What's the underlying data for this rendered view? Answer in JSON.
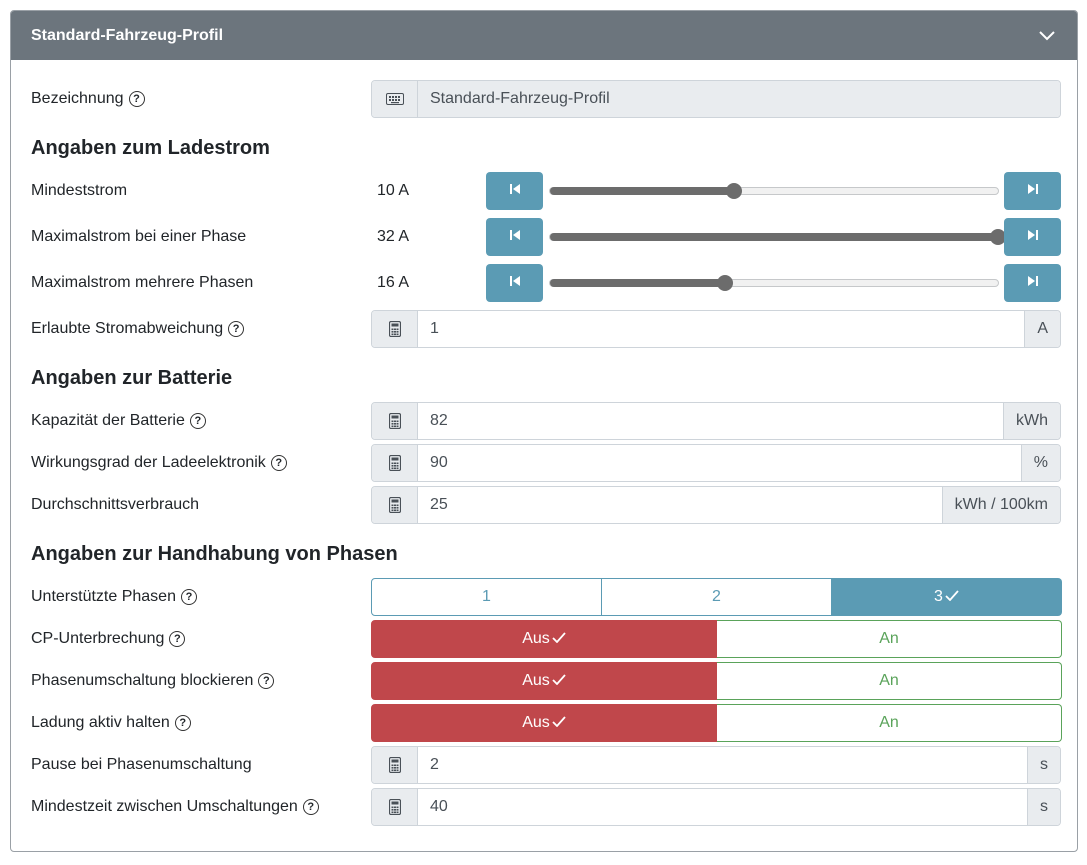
{
  "header": {
    "title": "Standard-Fahrzeug-Profil",
    "collapse_icon": "chevron-down-icon"
  },
  "designation": {
    "label": "Bezeichnung",
    "value": "Standard-Fahrzeug-Profil",
    "icon": "keyboard-icon"
  },
  "charging_section": {
    "title": "Angaben zum Ladestrom"
  },
  "min_current": {
    "label": "Mindeststrom",
    "value": "10 A",
    "level": 0.41
  },
  "max_current_one_phase": {
    "label": "Maximalstrom bei einer Phase",
    "value": "32 A",
    "level": 1.0
  },
  "max_current_multi_phase": {
    "label": "Maximalstrom mehrere Phasen",
    "value": "16 A",
    "level": 0.39
  },
  "allowed_deviation": {
    "label": "Erlaubte Stromabweichung",
    "value": "1",
    "unit": "A",
    "icon": "calculator-icon"
  },
  "battery_section": {
    "title": "Angaben zur Batterie"
  },
  "battery_capacity": {
    "label": "Kapazität der Batterie",
    "value": "82",
    "unit": "kWh"
  },
  "efficiency": {
    "label": "Wirkungsgrad der Ladeelektronik",
    "value": "90",
    "unit": "%"
  },
  "avg_consumption": {
    "label": "Durchschnittsverbrauch",
    "value": "25",
    "unit": "kWh / 100km"
  },
  "phases_section": {
    "title": "Angaben zur Handhabung von Phasen"
  },
  "supported_phases": {
    "label": "Unterstützte Phasen",
    "options": [
      "1",
      "2",
      "3"
    ],
    "selected": "3"
  },
  "cp_interrupt": {
    "label": "CP-Unterbrechung",
    "off": "Aus",
    "on": "An",
    "selected": "Aus"
  },
  "block_phase_switch": {
    "label": "Phasenumschaltung blockieren",
    "off": "Aus",
    "on": "An",
    "selected": "Aus"
  },
  "keep_charging": {
    "label": "Ladung aktiv halten",
    "off": "Aus",
    "on": "An",
    "selected": "Aus"
  },
  "pause_phase_switch": {
    "label": "Pause bei Phasenumschaltung",
    "value": "2",
    "unit": "s"
  },
  "min_time_switch": {
    "label": "Mindestzeit zwischen Umschaltungen",
    "value": "40",
    "unit": "s"
  },
  "colors": {
    "header": "#6c757d",
    "info": "#5b9bb4",
    "danger": "#c0474b",
    "success": "#5aa35a"
  }
}
